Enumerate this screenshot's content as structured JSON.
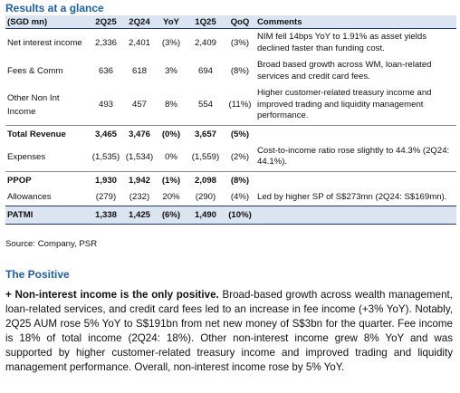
{
  "title": "Results at a glance",
  "table": {
    "header": [
      "(SGD mn)",
      "2Q25",
      "2Q24",
      "YoY",
      "1Q25",
      "QoQ",
      "Comments"
    ],
    "rows": [
      {
        "label": "Net interest income",
        "values": [
          "2,336",
          "2,401",
          "(3%)",
          "2,409",
          "(3%)"
        ],
        "comment": "NIM fell 14bps YoY to 1.91% as asset yields declined faster than funding cost."
      },
      {
        "label": "Fees & Comm",
        "values": [
          "636",
          "618",
          "3%",
          "694",
          "(8%)"
        ],
        "comment": "Broad based growth across WM, loan-related services and credit card fees."
      },
      {
        "label": "Other Non Int Income",
        "values": [
          "493",
          "457",
          "8%",
          "554",
          "(11%)"
        ],
        "comment": "Higher customer-related treasury income and improved trading and liquidity management performance."
      },
      {
        "label": "Total Revenue",
        "values": [
          "3,465",
          "3,476",
          "(0%)",
          "3,657",
          "(5%)"
        ],
        "bold": true
      },
      {
        "label": "Expenses",
        "values": [
          "(1,535)",
          "(1,534)",
          "0%",
          "(1,559)",
          "(2%)"
        ],
        "comment": "Cost-to-income ratio rose slightly to 44.3% (2Q24: 44.1%)."
      },
      {
        "label": "PPOP",
        "values": [
          "1,930",
          "1,942",
          "(1%)",
          "2,098",
          "(8%)"
        ],
        "bold": true
      },
      {
        "label": "Allowances",
        "values": [
          "(279)",
          "(232)",
          "20%",
          "(290)",
          "(4%)"
        ],
        "comment": "Led by higher SP of S$273mn (2Q24: S$169mn)."
      },
      {
        "label": "PATMI",
        "values": [
          "1,338",
          "1,425",
          "(6%)",
          "1,490",
          "(10%)"
        ],
        "bold": true,
        "highlight": true
      }
    ]
  },
  "source": "Source: Company, PSR",
  "positive": {
    "heading": "The Positive",
    "lead": "+ Non-interest income is the only positive.",
    "body": "Broad-based growth across wealth management, loan-related services, and credit card fees led to an increase in fee income (+3% YoY). Notably, 2Q25 AUM rose 5% YoY to S$191bn from net new money of S$3bn for the quarter. Fee income is 18% of total income (2Q24: 18%). Other non-interest income grew 8% YoY and was supported by higher customer-related treasury income and improved trading and liquidity management performance. Overall, non-interest income rose by 5% YoY."
  }
}
